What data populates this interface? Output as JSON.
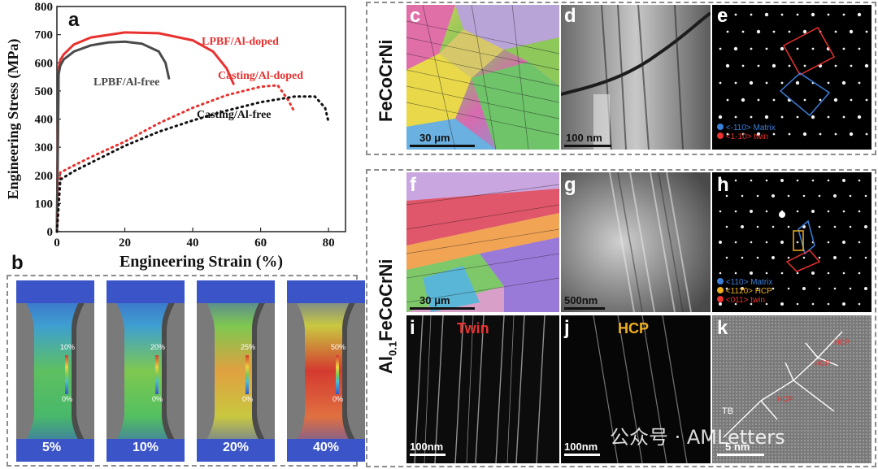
{
  "chart_data": {
    "type": "line",
    "panel_label": "a",
    "xlabel": "Engineering Strain (%)",
    "ylabel": "Engineering Stress (MPa)",
    "xlim": [
      0,
      85
    ],
    "ylim": [
      0,
      800
    ],
    "xticks": [
      "0",
      "20",
      "40",
      "60",
      "80"
    ],
    "yticks": [
      "0",
      "100",
      "200",
      "300",
      "400",
      "500",
      "600",
      "700",
      "800"
    ],
    "series": [
      {
        "name": "LPBF/Al-doped",
        "color": "#e8322f",
        "style": "solid",
        "x": [
          0,
          0.5,
          1,
          2,
          5,
          10,
          20,
          30,
          40,
          46,
          50,
          52
        ],
        "y": [
          0,
          580,
          610,
          630,
          665,
          690,
          708,
          705,
          680,
          640,
          580,
          525
        ]
      },
      {
        "name": "LPBF/Al-free",
        "color": "#4a4a4a",
        "style": "solid",
        "x": [
          0,
          0.5,
          1,
          2,
          5,
          10,
          15,
          20,
          25,
          30,
          32,
          33
        ],
        "y": [
          0,
          560,
          590,
          612,
          640,
          662,
          672,
          675,
          668,
          640,
          600,
          545
        ]
      },
      {
        "name": "Casting/Al-doped",
        "color": "#e8322f",
        "style": "dotted",
        "x": [
          0,
          1,
          5,
          10,
          20,
          30,
          40,
          50,
          60,
          65,
          68,
          70
        ],
        "y": [
          0,
          210,
          235,
          265,
          320,
          385,
          440,
          485,
          515,
          520,
          470,
          425
        ]
      },
      {
        "name": "Casting/Al-free",
        "color": "#111111",
        "style": "dotted",
        "x": [
          0,
          1,
          5,
          10,
          20,
          30,
          40,
          50,
          60,
          70,
          76,
          79,
          80
        ],
        "y": [
          0,
          185,
          215,
          245,
          305,
          355,
          395,
          430,
          460,
          480,
          480,
          440,
          390
        ]
      }
    ]
  },
  "panel_b": {
    "label": "b",
    "frames": [
      {
        "strain": "5%",
        "scale_max": "10%",
        "scale_min": "0%"
      },
      {
        "strain": "10%",
        "scale_max": "20%",
        "scale_min": "0%"
      },
      {
        "strain": "20%",
        "scale_max": "25%",
        "scale_min": "0%"
      },
      {
        "strain": "40%",
        "scale_max": "50%",
        "scale_min": "0%"
      }
    ]
  },
  "top_right": {
    "row_label": "FeCoCrNi",
    "c": {
      "label": "c",
      "scale": "30 μm"
    },
    "d": {
      "label": "d",
      "scale": "100 nm"
    },
    "e": {
      "label": "e",
      "legend": [
        "<-110> Matrix",
        "<1-10> twin"
      ],
      "legend_colors": [
        "#3b7fd9",
        "#e8322f"
      ]
    }
  },
  "bottom_right": {
    "row_label_main": "Al",
    "row_label_sub": "0.1",
    "row_label_rest": "FeCoCrNi",
    "f": {
      "label": "f",
      "scale": "30 μm"
    },
    "g": {
      "label": "g",
      "scale": "500nm"
    },
    "h": {
      "label": "h",
      "legend": [
        "<110> Matrix",
        "<1120> HCP",
        "<011> twin"
      ],
      "legend_colors": [
        "#3b7fd9",
        "#f0b020",
        "#e8322f"
      ]
    },
    "i": {
      "label": "i",
      "scale": "100nm",
      "title": "Twin"
    },
    "j": {
      "label": "j",
      "scale": "100nm",
      "title": "HCP"
    },
    "k": {
      "label": "k",
      "scale": "5 nm",
      "tb": "TB",
      "hcp_tags": [
        "HCP",
        "HCP",
        "HCP"
      ]
    }
  },
  "watermark": "公众号 · AMLetters"
}
